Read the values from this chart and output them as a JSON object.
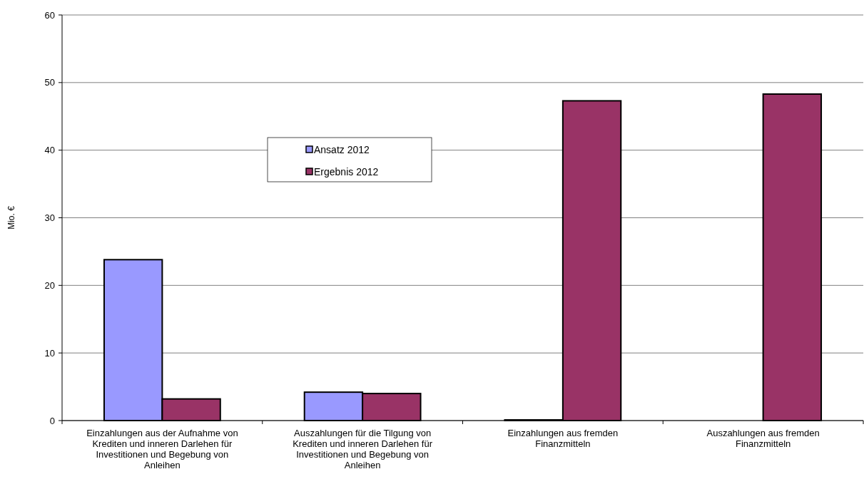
{
  "chart_data": {
    "type": "bar",
    "categories": [
      "Einzahlungen aus der Aufnahme von Krediten und inneren Darlehen für Investitionen und Begebung von Anleihen",
      "Auszahlungen für die Tilgung von Krediten und inneren Darlehen für Investitionen und Begebung von Anleihen",
      "Einzahlungen aus fremden Finanzmitteln",
      "Auszahlungen aus fremden Finanzmitteln"
    ],
    "series": [
      {
        "name": "Ansatz 2012",
        "color": "#9999ff",
        "values": [
          23.8,
          4.2,
          0.1,
          0
        ]
      },
      {
        "name": "Ergebnis 2012",
        "color": "#993366",
        "values": [
          3.2,
          4.0,
          47.3,
          48.3
        ]
      }
    ],
    "ylabel": "Mio. €",
    "ylim": [
      0,
      60
    ],
    "yticks": [
      0,
      10,
      20,
      30,
      40,
      50,
      60
    ],
    "grid": "y",
    "legend": "top"
  }
}
